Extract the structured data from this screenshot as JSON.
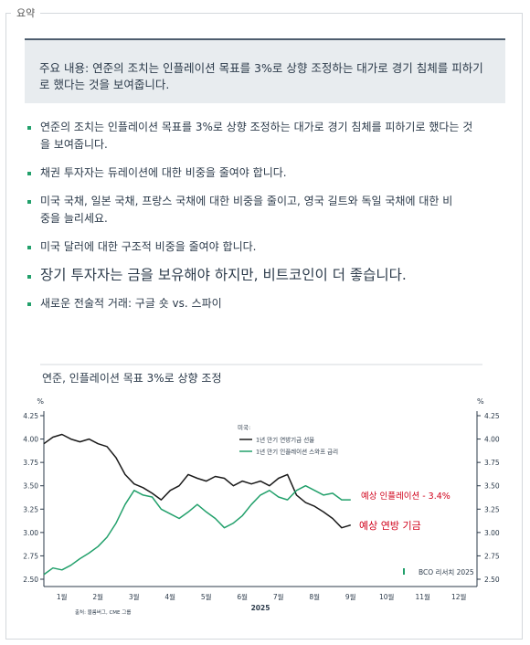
{
  "section_label": "요약",
  "summary": "주요 내용: 연준의 조치는 인플레이션 목표를 3%로 상향 조정하는 대가로 경기 침체를 피하기로 했다는 것을 보여줍니다.",
  "bullets": [
    "연준의 조치는 인플레이션 목표를 3%로 상향 조정하는 대가로 경기 침체를 피하기로 했다는 것을 보여줍니다.",
    "채권 투자자는 듀레이션에 대한 비중을 줄여야 합니다.",
    "미국 국채, 일본 국채, 프랑스 국채에 대한 비중을 줄이고, 영국 길트와 독일 국채에 대한 비중을 늘리세요.",
    "미국 달러에 대한 구조적 비중을 줄여야 합니다.",
    "장기 투자자는 금을 보유해야 하지만, 비트코인이 더 좋습니다.",
    "새로운 전술적 거래: 구글 숏 vs. 스파이"
  ],
  "chart_data": {
    "type": "line",
    "title": "연준, 인플레이션 목표 3%로 상향 조정",
    "y_unit": "%",
    "y2_unit": "%",
    "x_year": "2025",
    "legend_title": "미국:",
    "source": "출처: 블룸버그, CME 그룹",
    "credit": "BCO 리서치 2025",
    "xlim": [
      0,
      12
    ],
    "xticks": [
      {
        "value": 0.5,
        "label": "1월"
      },
      {
        "value": 1.5,
        "label": "2월"
      },
      {
        "value": 2.5,
        "label": "3월"
      },
      {
        "value": 3.5,
        "label": "4월"
      },
      {
        "value": 4.5,
        "label": "5월"
      },
      {
        "value": 5.5,
        "label": "6월"
      },
      {
        "value": 6.5,
        "label": "7월"
      },
      {
        "value": 7.5,
        "label": "8월"
      },
      {
        "value": 8.5,
        "label": "9월"
      },
      {
        "value": 9.5,
        "label": "10월"
      },
      {
        "value": 10.5,
        "label": "11월"
      },
      {
        "value": 11.5,
        "label": "12월"
      }
    ],
    "ylim": [
      2.5,
      4.25
    ],
    "yticks": [
      {
        "value": 2.5,
        "label": "2.50"
      },
      2.75,
      {
        "value": 3,
        "label": "3.00"
      },
      3.25,
      {
        "value": 3.5,
        "label": "3.50"
      },
      3.75,
      {
        "value": 4,
        "label": "4.00"
      },
      4.25
    ],
    "y2lim": [
      2.5,
      4.25
    ],
    "y2ticks": [
      {
        "value": 2.5,
        "label": "2.50"
      },
      2.75,
      {
        "value": 3,
        "label": "3.00"
      },
      3.25,
      {
        "value": 3.5,
        "label": "3.50"
      },
      3.75,
      {
        "value": 4,
        "label": "4.00"
      },
      4.25
    ],
    "x": [
      0,
      0.25,
      0.5,
      0.75,
      1,
      1.25,
      1.5,
      1.75,
      2,
      2.25,
      2.5,
      2.75,
      3,
      3.25,
      3.5,
      3.75,
      4,
      4.25,
      4.5,
      4.75,
      5,
      5.25,
      5.5,
      5.75,
      6,
      6.25,
      6.5,
      6.75,
      7,
      7.25,
      7.5,
      7.75,
      8,
      8.25,
      8.5
    ],
    "series": [
      {
        "name": "1년 만기 연방기금 선물",
        "color": "#1a1a1a",
        "annotation": "예상 연방 기금",
        "values": [
          3.95,
          4.02,
          4.05,
          4.0,
          3.97,
          4.0,
          3.95,
          3.92,
          3.8,
          3.62,
          3.52,
          3.48,
          3.42,
          3.35,
          3.45,
          3.5,
          3.62,
          3.58,
          3.55,
          3.6,
          3.58,
          3.5,
          3.55,
          3.52,
          3.55,
          3.5,
          3.58,
          3.62,
          3.4,
          3.32,
          3.28,
          3.22,
          3.15,
          3.05,
          3.08
        ]
      },
      {
        "name": "1년 만기 인플레이션 스와프 금리",
        "color": "#22a06b",
        "annotation": "예상 인플레이션 - 3.4%",
        "values": [
          2.55,
          2.62,
          2.6,
          2.65,
          2.72,
          2.78,
          2.85,
          2.95,
          3.1,
          3.3,
          3.45,
          3.4,
          3.38,
          3.25,
          3.2,
          3.15,
          3.22,
          3.3,
          3.22,
          3.15,
          3.05,
          3.1,
          3.18,
          3.3,
          3.4,
          3.45,
          3.38,
          3.35,
          3.45,
          3.5,
          3.45,
          3.4,
          3.42,
          3.35,
          3.35
        ]
      }
    ],
    "annotation_color": "#d0021b"
  }
}
